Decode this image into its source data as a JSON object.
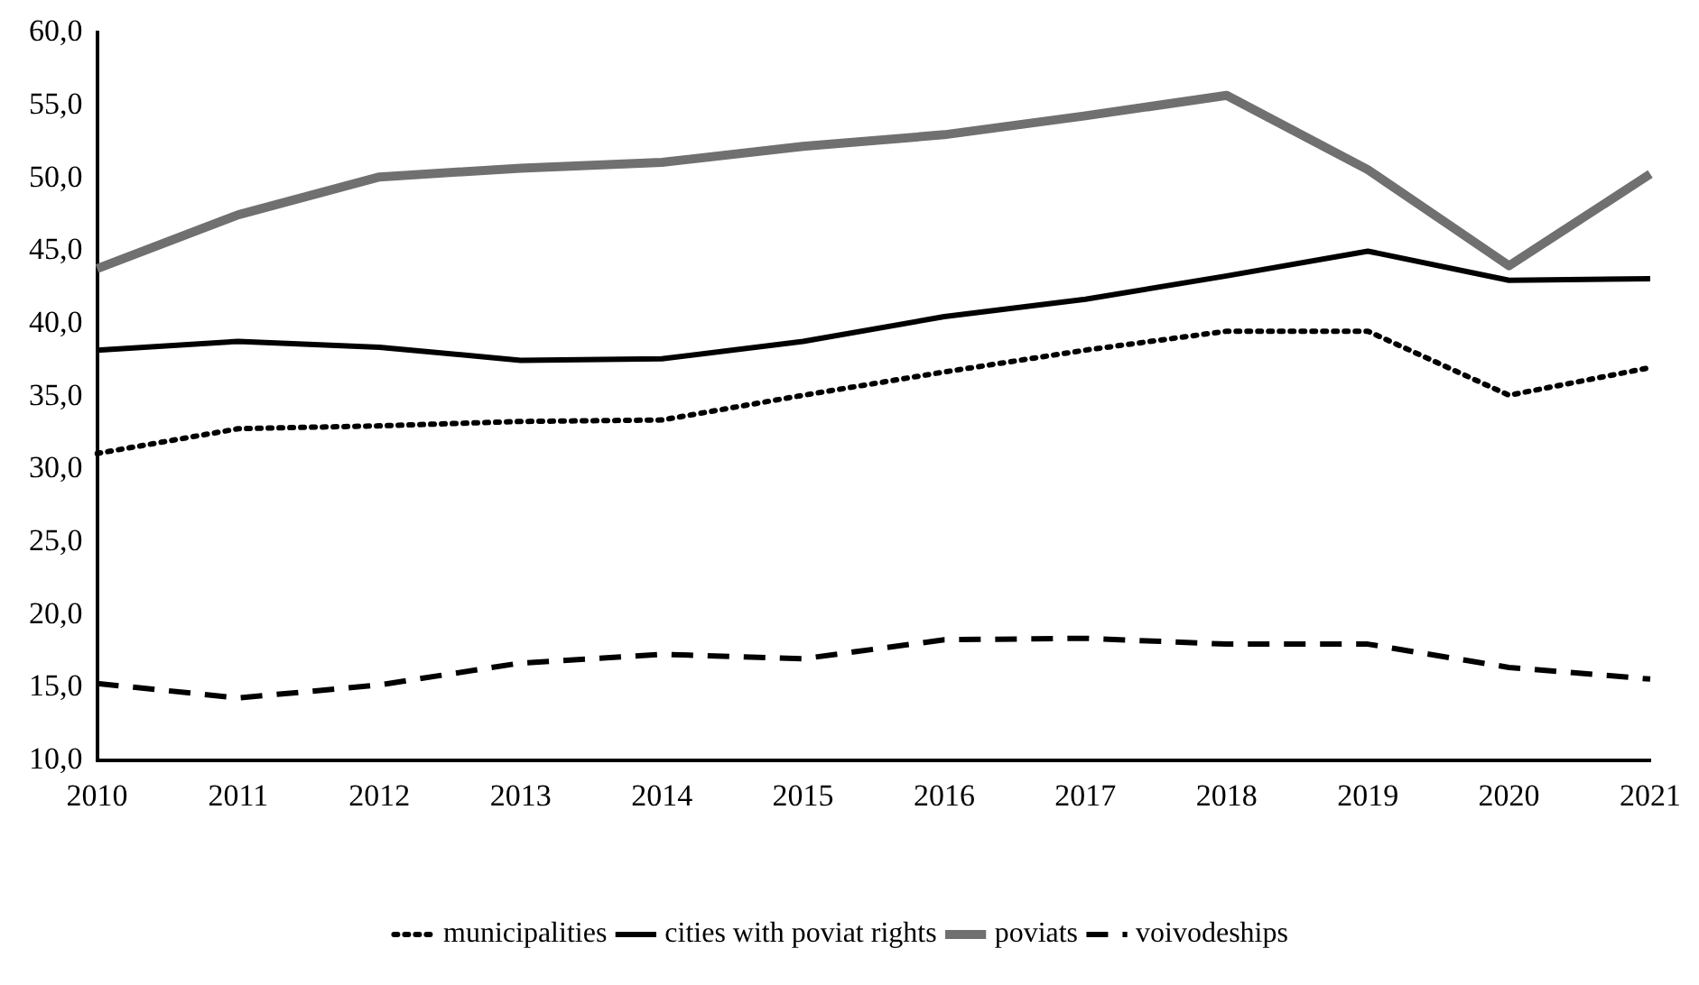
{
  "chart_data": {
    "type": "line",
    "categories": [
      "2010",
      "2011",
      "2012",
      "2013",
      "2014",
      "2015",
      "2016",
      "2017",
      "2018",
      "2019",
      "2020",
      "2021"
    ],
    "series": [
      {
        "name": "municipalities",
        "color": "#000000",
        "line_style": "dotted",
        "values": [
          31.1,
          32.8,
          33.0,
          33.3,
          33.4,
          35.1,
          36.7,
          38.2,
          39.5,
          39.5,
          35.1,
          37.0
        ]
      },
      {
        "name": "cities with poviat rights",
        "color": "#000000",
        "line_style": "solid",
        "values": [
          38.2,
          38.8,
          38.4,
          37.5,
          37.6,
          38.8,
          40.5,
          41.7,
          43.3,
          45.0,
          43.0,
          43.1
        ]
      },
      {
        "name": "poviats",
        "color": "#707070",
        "line_style": "solid",
        "values": [
          43.8,
          47.5,
          50.1,
          50.7,
          51.1,
          52.2,
          53.0,
          54.3,
          55.7,
          50.6,
          44.0,
          50.3
        ]
      },
      {
        "name": "voivodeships",
        "color": "#000000",
        "line_style": "dashed",
        "values": [
          15.3,
          14.3,
          15.2,
          16.7,
          17.3,
          17.0,
          18.3,
          18.4,
          18.0,
          18.0,
          16.4,
          15.6
        ]
      }
    ],
    "ylim": [
      10,
      60
    ],
    "yticks": [
      {
        "value": 10,
        "label": "10,0"
      },
      {
        "value": 15,
        "label": "15,0"
      },
      {
        "value": 20,
        "label": "20,0"
      },
      {
        "value": 25,
        "label": "25,0"
      },
      {
        "value": 30,
        "label": "30,0"
      },
      {
        "value": 35,
        "label": "35,0"
      },
      {
        "value": 40,
        "label": "40,0"
      },
      {
        "value": 45,
        "label": "45,0"
      },
      {
        "value": 50,
        "label": "50,0"
      },
      {
        "value": 55,
        "label": "55,0"
      },
      {
        "value": 60,
        "label": "60,0"
      }
    ],
    "grid": false,
    "legend": "bottom",
    "marker": "none"
  }
}
